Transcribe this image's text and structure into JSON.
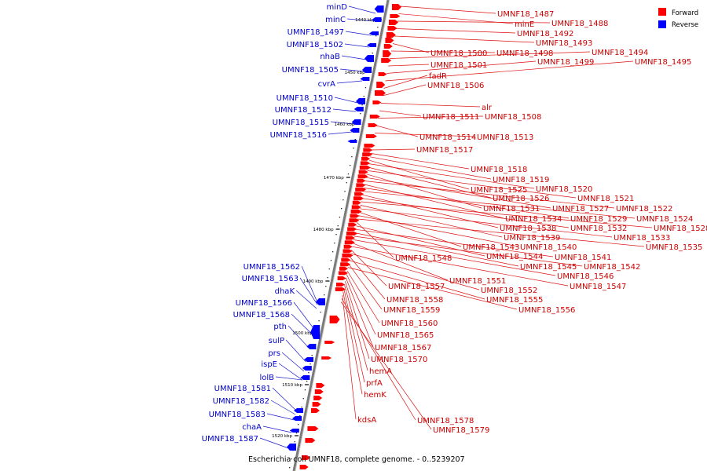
{
  "caption": "Escherichia coli UMNF18, complete genome. - 0..5239207",
  "legend": [
    {
      "label": "Forward",
      "color": "#ff0000"
    },
    {
      "label": "Reverse",
      "color": "#0000ff"
    }
  ],
  "colors": {
    "forward": "#ff0000",
    "forward_line": "#dd1111",
    "reverse": "#0000ff",
    "reverse_line": "#1a1acc",
    "backbone": "#7a7a7a"
  },
  "ticks": [
    "1440 kbp",
    "1450 kbp",
    "1460 kbp",
    "1470 kbp",
    "1480 kbp",
    "1490 kbp",
    "1500 kbp",
    "1510 kbp",
    "1520 kbp"
  ],
  "reverse_labels": [
    "minD",
    "minC",
    "UMNF18_1497",
    "UMNF18_1502",
    "nhaB",
    "UMNF18_1505",
    "cvrA",
    "UMNF18_1510",
    "UMNF18_1512",
    "UMNF18_1515",
    "UMNF18_1516",
    "UMNF18_1562",
    "UMNF18_1563",
    "dhaK",
    "UMNF18_1566",
    "UMNF18_1568",
    "pth",
    "sulP",
    "prs",
    "ispE",
    "lolB",
    "UMNF18_1581",
    "UMNF18_1582",
    "UMNF18_1583",
    "chaA",
    "UMNF18_1587"
  ],
  "forward_labels": [
    "UMNF18_1487",
    "minE",
    "UMNF18_1488",
    "UMNF18_1492",
    "UMNF18_1493",
    "UMNF18_1500",
    "UMNF18_1498",
    "UMNF18_1494",
    "UMNF18_1501",
    "UMNF18_1499",
    "UMNF18_1495",
    "fadR",
    "UMNF18_1506",
    "alr",
    "UMNF18_1511",
    "UMNF18_1508",
    "UMNF18_1514",
    "UMNF18_1513",
    "UMNF18_1517",
    "UMNF18_1518",
    "UMNF18_1519",
    "UMNF18_1525",
    "UMNF18_1520",
    "UMNF18_1526",
    "UMNF18_1521",
    "UMNF18_1531",
    "UMNF18_1527",
    "UMNF18_1522",
    "UMNF18_1534",
    "UMNF18_1529",
    "UMNF18_1524",
    "UMNF18_1538",
    "UMNF18_1532",
    "UMNF18_1528",
    "UMNF18_1539",
    "UMNF18_1533",
    "UMNF18_1543",
    "UMNF18_1540",
    "UMNF18_1535",
    "UMNF18_1548",
    "UMNF18_1544",
    "UMNF18_1541",
    "UMNF18_1545",
    "UMNF18_1542",
    "UMNF18_1546",
    "UMNF18_1551",
    "UMNF18_1547",
    "UMNF18_1557",
    "UMNF18_1552",
    "UMNF18_1558",
    "UMNF18_1555",
    "UMNF18_1559",
    "UMNF18_1556",
    "UMNF18_1560",
    "UMNF18_1565",
    "UMNF18_1567",
    "UMNF18_1570",
    "hemA",
    "prfA",
    "hemK",
    "kdsA",
    "UMNF18_1578",
    "UMNF18_1579"
  ]
}
